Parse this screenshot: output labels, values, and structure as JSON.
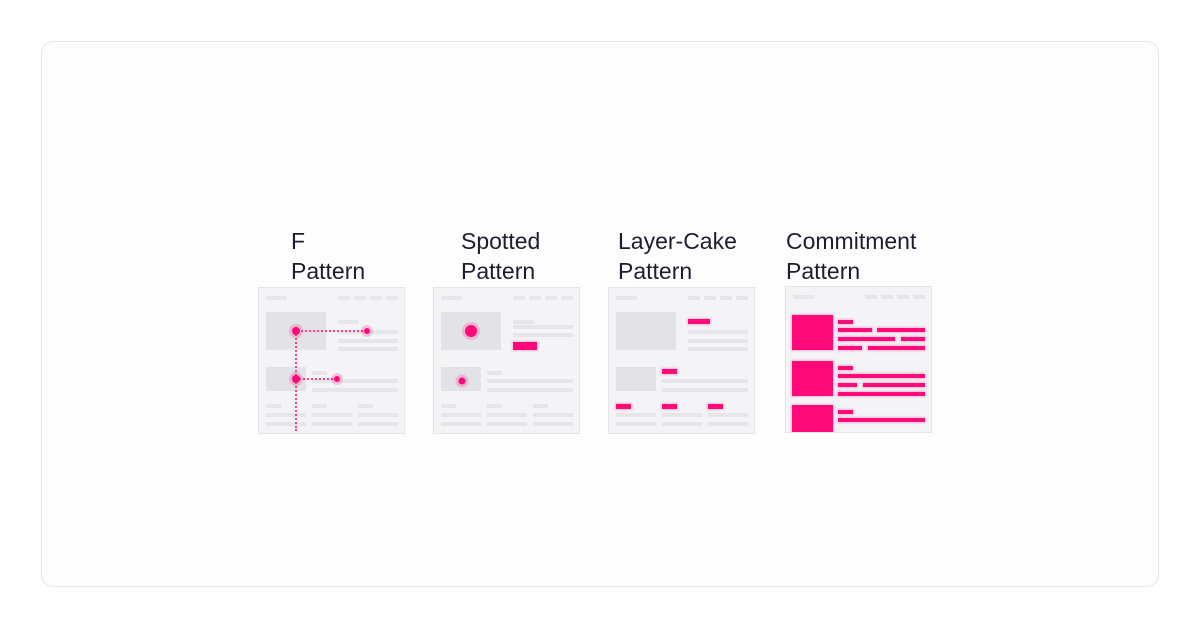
{
  "accent_color": "#ff0a78",
  "patterns": [
    {
      "id": "f",
      "title": "F\nPattern"
    },
    {
      "id": "spotted",
      "title": "Spotted\nPattern"
    },
    {
      "id": "layer-cake",
      "title": "Layer-Cake\nPattern"
    },
    {
      "id": "commitment",
      "title": "Commitment\nPattern"
    }
  ]
}
